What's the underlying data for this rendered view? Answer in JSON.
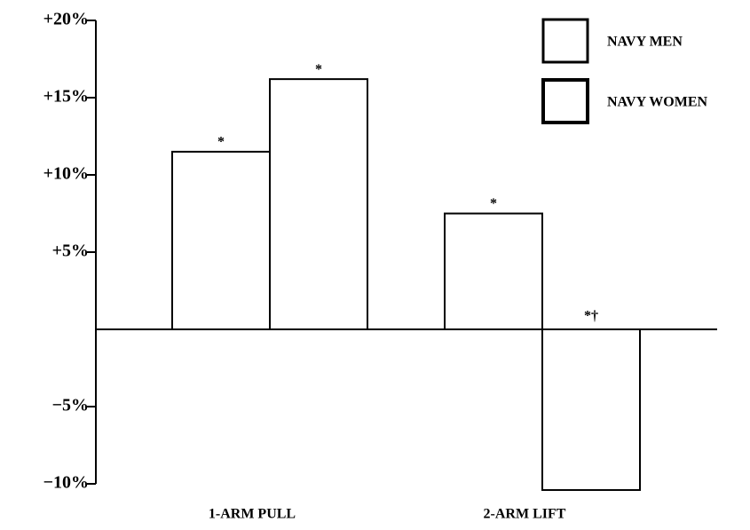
{
  "chart_data": {
    "type": "bar",
    "categories": [
      "1-ARM PULL",
      "2-ARM LIFT"
    ],
    "series": [
      {
        "name": "NAVY MEN",
        "color": "#ffffff",
        "values": [
          11.5,
          7.5
        ],
        "annotations": [
          "*",
          "*"
        ]
      },
      {
        "name": "NAVY WOMEN",
        "color": "#ffffff",
        "values": [
          16.2,
          -10.4
        ],
        "annotations": [
          "*",
          "*†"
        ]
      }
    ],
    "ylim": [
      -10,
      20
    ],
    "yticks": [
      {
        "value": 20,
        "label": "+20%"
      },
      {
        "value": 15,
        "label": "+15%"
      },
      {
        "value": 10,
        "label": "+10%"
      },
      {
        "value": 5,
        "label": "+5%"
      },
      {
        "value": -5,
        "label": "−5%"
      },
      {
        "value": -10,
        "label": "−10%"
      }
    ],
    "legend": "top-right",
    "grid": false
  }
}
